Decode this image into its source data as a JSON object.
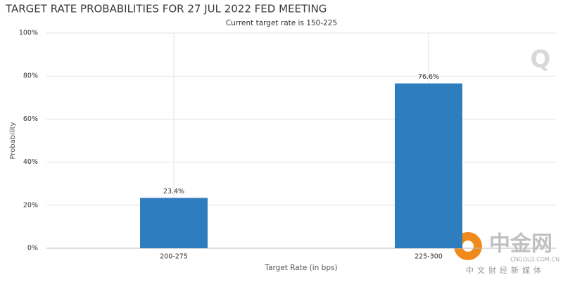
{
  "chart_data": {
    "type": "bar",
    "title": "TARGET RATE PROBABILITIES FOR 27 JUL 2022 FED MEETING",
    "subtitle": "Current target rate is 150-225",
    "x_label": "Target Rate (in bps)",
    "y_label": "Probability",
    "categories": [
      "200-275",
      "225-300"
    ],
    "values": [
      23.4,
      76.6
    ],
    "value_labels": [
      "23.4%",
      "76.6%"
    ],
    "color": "#2d7dbf",
    "ylim": [
      0,
      100
    ],
    "yticks": [
      {
        "value": 0,
        "label": "0%"
      },
      {
        "value": 20,
        "label": "20%"
      },
      {
        "value": 40,
        "label": "40%"
      },
      {
        "value": 60,
        "label": "60%"
      },
      {
        "value": 80,
        "label": "80%"
      },
      {
        "value": 100,
        "label": "100%"
      }
    ],
    "grid": true
  },
  "watermark": {
    "logo": "Q",
    "brand": "中金网",
    "site": "CNGOLD.COM.CN",
    "tagline": "中文财经新媒体"
  }
}
